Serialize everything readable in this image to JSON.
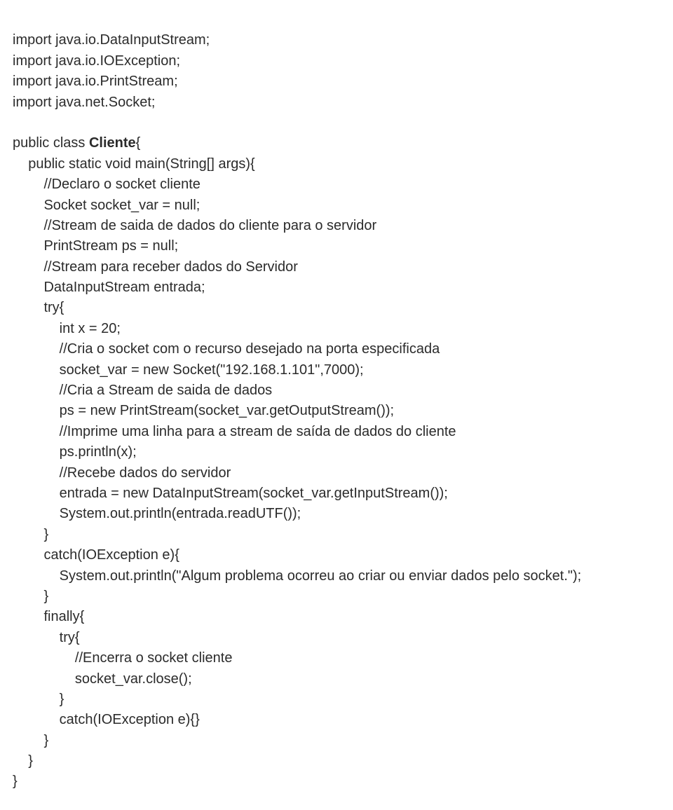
{
  "imports": [
    "import java.io.DataInputStream;",
    "import java.io.IOException;",
    "import java.io.PrintStream;",
    "import java.net.Socket;"
  ],
  "blank1": "",
  "classDecl": {
    "prefix": "public class ",
    "name": "Cliente",
    "suffix": "{"
  },
  "lines": {
    "methodSig": "    public static void main(String[] args){",
    "c1": "        //Declaro o socket cliente",
    "l1": "        Socket socket_var = null;",
    "c2": "        //Stream de saida de dados do cliente para o servidor",
    "l2": "        PrintStream ps = null;",
    "c3": "        //Stream para receber dados do Servidor",
    "l3": "        DataInputStream entrada;",
    "l4": "        try{",
    "l5": "            int x = 20;",
    "c4": "            //Cria o socket com o recurso desejado na porta especificada",
    "l6": "            socket_var = new Socket(\"192.168.1.101\",7000);",
    "c5": "            //Cria a Stream de saida de dados",
    "l7": "            ps = new PrintStream(socket_var.getOutputStream());",
    "c6": "            //Imprime uma linha para a stream de saída de dados do cliente",
    "l8": "            ps.println(x);",
    "c7": "            //Recebe dados do servidor",
    "l9": "            entrada = new DataInputStream(socket_var.getInputStream());",
    "l10": "            System.out.println(entrada.readUTF());",
    "l11": "        }",
    "l12": "        catch(IOException e){",
    "l13": "            System.out.println(\"Algum problema ocorreu ao criar ou enviar dados pelo socket.\");",
    "l14": "        }",
    "l15": "        finally{",
    "l16": "            try{",
    "c8": "                //Encerra o socket cliente",
    "l17": "                socket_var.close();",
    "l18": "            }",
    "l19": "            catch(IOException e){}",
    "l20": "        }",
    "l21": "    }",
    "l22": "}"
  }
}
